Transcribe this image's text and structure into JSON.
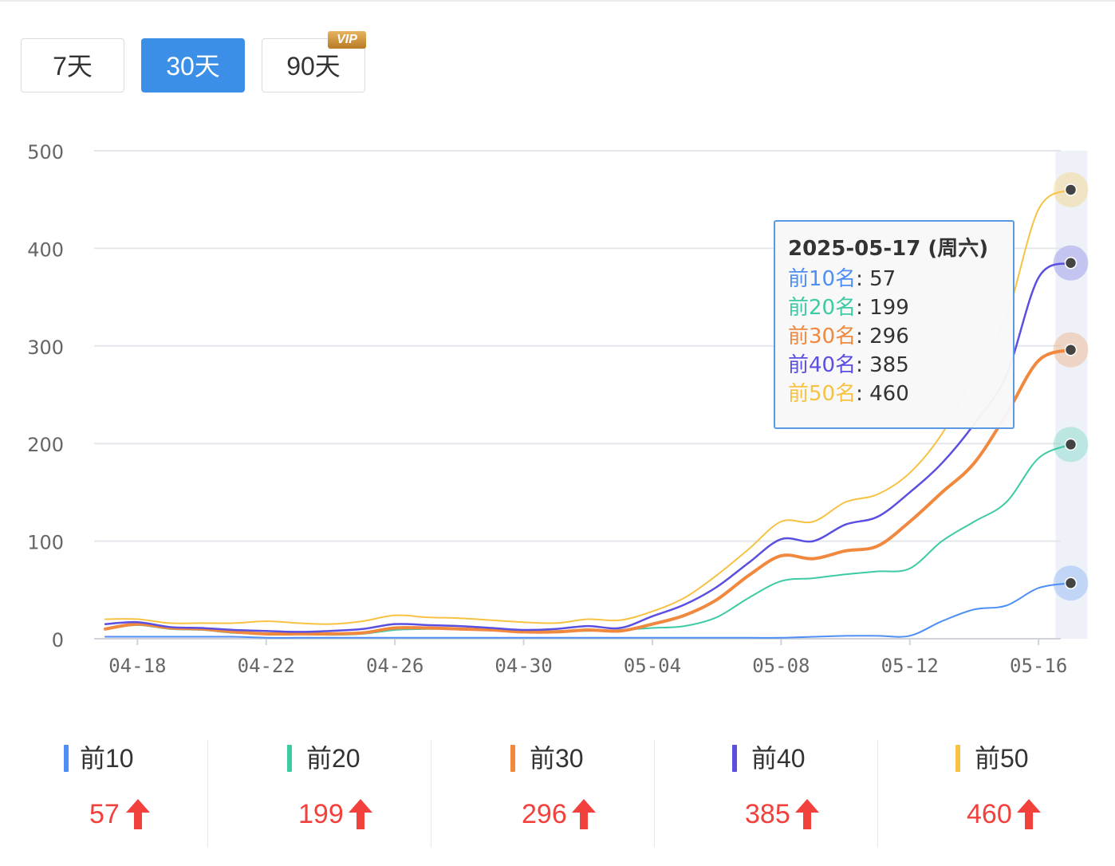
{
  "tabs": [
    {
      "label": "7天",
      "active": false
    },
    {
      "label": "30天",
      "active": true
    },
    {
      "label": "90天",
      "active": false,
      "badge": "VIP"
    }
  ],
  "chart_data": {
    "type": "line",
    "x": [
      "04-17",
      "04-18",
      "04-19",
      "04-20",
      "04-21",
      "04-22",
      "04-23",
      "04-24",
      "04-25",
      "04-26",
      "04-27",
      "04-28",
      "04-29",
      "04-30",
      "05-01",
      "05-02",
      "05-03",
      "05-04",
      "05-05",
      "05-06",
      "05-07",
      "05-08",
      "05-09",
      "05-10",
      "05-11",
      "05-12",
      "05-13",
      "05-14",
      "05-15",
      "05-16",
      "05-17"
    ],
    "xticks": [
      "04-18",
      "04-22",
      "04-26",
      "04-30",
      "05-04",
      "05-08",
      "05-12",
      "05-16"
    ],
    "ylim": [
      0,
      500
    ],
    "yticks": [
      0,
      100,
      200,
      300,
      400,
      500
    ],
    "grid": true,
    "highlight_index": 30,
    "series": [
      {
        "name": "前10",
        "color": "#4e8ef5",
        "values": [
          2,
          2,
          2,
          2,
          2,
          1,
          1,
          1,
          1,
          1,
          1,
          1,
          1,
          1,
          1,
          1,
          1,
          1,
          1,
          1,
          1,
          1,
          2,
          3,
          3,
          3,
          18,
          30,
          34,
          52,
          57
        ]
      },
      {
        "name": "前20",
        "color": "#3dcaa5",
        "values": [
          10,
          14,
          10,
          9,
          6,
          5,
          5,
          4,
          5,
          9,
          10,
          10,
          9,
          8,
          8,
          8,
          9,
          11,
          13,
          22,
          42,
          59,
          62,
          66,
          69,
          72,
          100,
          120,
          140,
          185,
          199
        ]
      },
      {
        "name": "前30",
        "color": "#f0883e",
        "values": [
          10,
          15,
          11,
          10,
          7,
          5,
          5,
          5,
          6,
          11,
          11,
          10,
          9,
          7,
          7,
          9,
          8,
          15,
          24,
          40,
          65,
          85,
          82,
          90,
          95,
          120,
          150,
          180,
          230,
          285,
          296
        ]
      },
      {
        "name": "前40",
        "color": "#5a4fe0",
        "values": [
          15,
          17,
          12,
          11,
          9,
          8,
          7,
          8,
          10,
          15,
          14,
          13,
          11,
          9,
          10,
          13,
          11,
          23,
          35,
          53,
          78,
          102,
          100,
          117,
          125,
          150,
          180,
          220,
          270,
          370,
          385
        ]
      },
      {
        "name": "前50",
        "color": "#f7c242",
        "values": [
          20,
          20,
          16,
          16,
          16,
          18,
          16,
          15,
          18,
          24,
          22,
          21,
          19,
          17,
          16,
          20,
          19,
          28,
          42,
          65,
          92,
          120,
          120,
          140,
          148,
          170,
          210,
          270,
          330,
          440,
          460
        ]
      }
    ]
  },
  "tooltip": {
    "title": "2025-05-17 (周六)",
    "rows": [
      {
        "label": "前10名",
        "value": "57",
        "color": "#4e8ef5"
      },
      {
        "label": "前20名",
        "value": "199",
        "color": "#3dcaa5"
      },
      {
        "label": "前30名",
        "value": "296",
        "color": "#f0883e"
      },
      {
        "label": "前40名",
        "value": "385",
        "color": "#5a4fe0"
      },
      {
        "label": "前50名",
        "value": "460",
        "color": "#f7c242"
      }
    ]
  },
  "summary": [
    {
      "name": "前10",
      "value": "57",
      "color": "#4e8ef5",
      "trend": "up"
    },
    {
      "name": "前20",
      "value": "199",
      "color": "#3dcaa5",
      "trend": "up"
    },
    {
      "name": "前30",
      "value": "296",
      "color": "#f0883e",
      "trend": "up"
    },
    {
      "name": "前40",
      "value": "385",
      "color": "#5a4fe0",
      "trend": "up"
    },
    {
      "name": "前50",
      "value": "460",
      "color": "#f7c242",
      "trend": "up"
    }
  ]
}
